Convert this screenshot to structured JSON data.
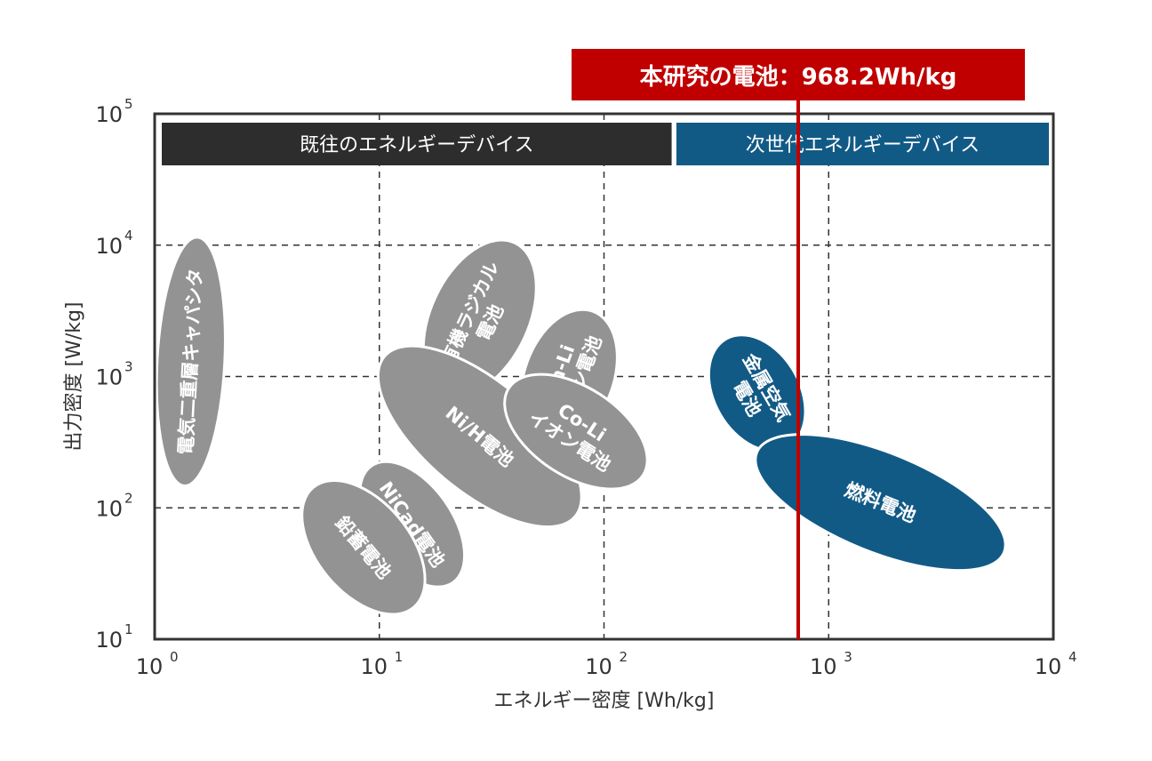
{
  "chart_data": {
    "type": "scatter",
    "scale": "log-log",
    "xlabel": "エネルギー密度 [Wh/kg]",
    "ylabel": "出力密度 [W/kg]",
    "xlim": [
      1,
      10000
    ],
    "ylim": [
      10,
      100000
    ],
    "x_ticks": [
      {
        "base": "10",
        "exp": "0"
      },
      {
        "base": "10",
        "exp": "1"
      },
      {
        "base": "10",
        "exp": "2"
      },
      {
        "base": "10",
        "exp": "3"
      },
      {
        "base": "10",
        "exp": "4"
      }
    ],
    "y_ticks": [
      {
        "base": "10",
        "exp": "1"
      },
      {
        "base": "10",
        "exp": "2"
      },
      {
        "base": "10",
        "exp": "3"
      },
      {
        "base": "10",
        "exp": "4"
      },
      {
        "base": "10",
        "exp": "5"
      }
    ],
    "grid": "dashed",
    "groups": [
      {
        "label": "既往のエネルギーデバイス",
        "color": "#2d2d2d",
        "x_range": [
          1,
          200
        ]
      },
      {
        "label": "次世代エネルギーデバイス",
        "color": "#125a86",
        "x_range": [
          210,
          10000
        ]
      }
    ],
    "highlight": {
      "label": "本研究の電池：968.2Wh/kg",
      "x": 968.2,
      "color": "#c00000"
    },
    "regions": [
      {
        "name": "電気二重層キャパシタ",
        "lines": [
          "電気二重層キャパシタ"
        ],
        "color": "#939393",
        "cx": 1.3,
        "cy": 1300,
        "orientation": "vertical"
      },
      {
        "name": "有機ラジカル電池",
        "lines": [
          "有機ラジカル",
          "電池"
        ],
        "color": "#939393",
        "cx": 28,
        "cy": 2800
      },
      {
        "name": "Mn-Liイオン電池",
        "lines": [
          "Mn-Li",
          "イオン電池"
        ],
        "color": "#939393",
        "cx": 70,
        "cy": 1000
      },
      {
        "name": "Ni/H電池",
        "lines": [
          "Ni/H電池"
        ],
        "color": "#939393",
        "cx": 28,
        "cy": 350
      },
      {
        "name": "Co-Liイオン電池",
        "lines": [
          "Co-Li",
          "イオン電池"
        ],
        "color": "#939393",
        "cx": 75,
        "cy": 380
      },
      {
        "name": "NiCad電池",
        "lines": [
          "NiCad電池"
        ],
        "color": "#939393",
        "cx": 14,
        "cy": 75
      },
      {
        "name": "鉛蓄電池",
        "lines": [
          "鉛蓄電池"
        ],
        "color": "#939393",
        "cx": 8.5,
        "cy": 50
      },
      {
        "name": "金属空気電池",
        "lines": [
          "金属空気",
          "電池"
        ],
        "color": "#125a86",
        "cx": 480,
        "cy": 750
      },
      {
        "name": "燃料電池",
        "lines": [
          "燃料電池"
        ],
        "color": "#125a86",
        "cx": 1700,
        "cy": 110
      }
    ]
  }
}
